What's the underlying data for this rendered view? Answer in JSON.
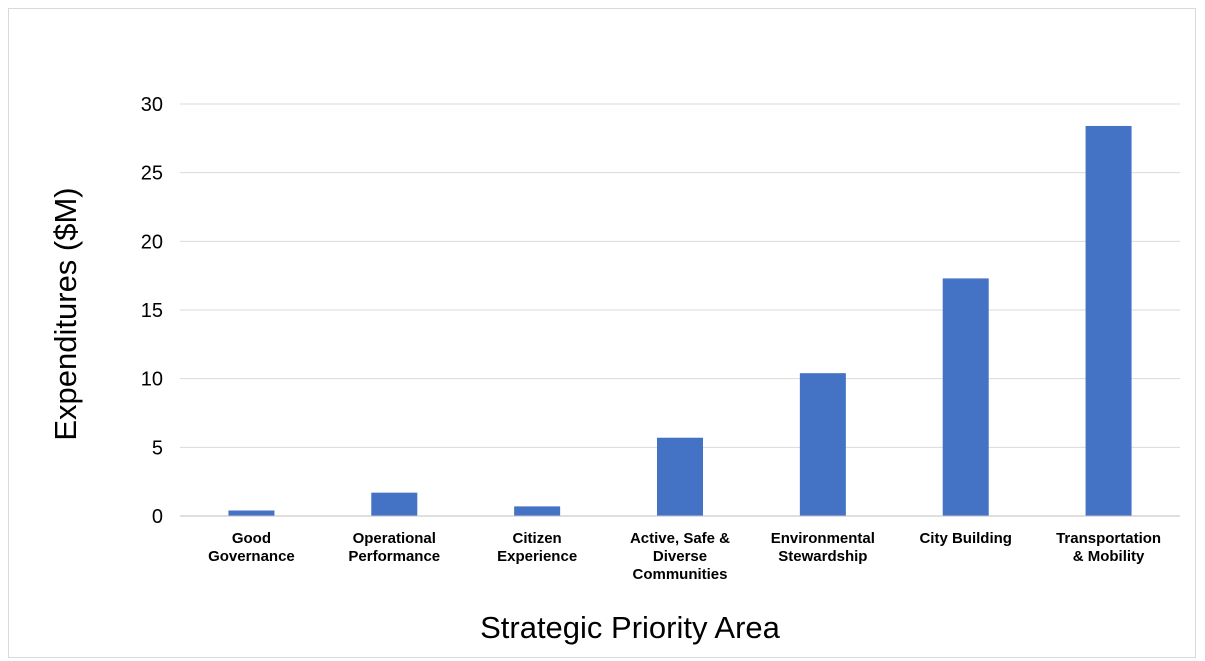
{
  "chart_data": {
    "type": "bar",
    "title": "",
    "xlabel": "Strategic Priority Area",
    "ylabel": "Expenditures ($M)",
    "categories": [
      [
        "Good",
        "Governance"
      ],
      [
        "Operational",
        "Performance"
      ],
      [
        "Citizen",
        "Experience"
      ],
      [
        "Active, Safe &",
        "Diverse",
        "Communities"
      ],
      [
        "Environmental",
        "Stewardship"
      ],
      [
        "City Building"
      ],
      [
        "Transportation",
        "& Mobility"
      ]
    ],
    "values": [
      0.4,
      1.7,
      0.7,
      5.7,
      10.4,
      17.3,
      28.4
    ],
    "ylim": [
      0,
      30
    ],
    "yticks": [
      0,
      5,
      10,
      15,
      20,
      25,
      30
    ],
    "grid": true,
    "legend": "none",
    "colors": {
      "bar": "#4472c4",
      "grid": "#d9d9d9",
      "axis": "#bfbfbf"
    }
  }
}
